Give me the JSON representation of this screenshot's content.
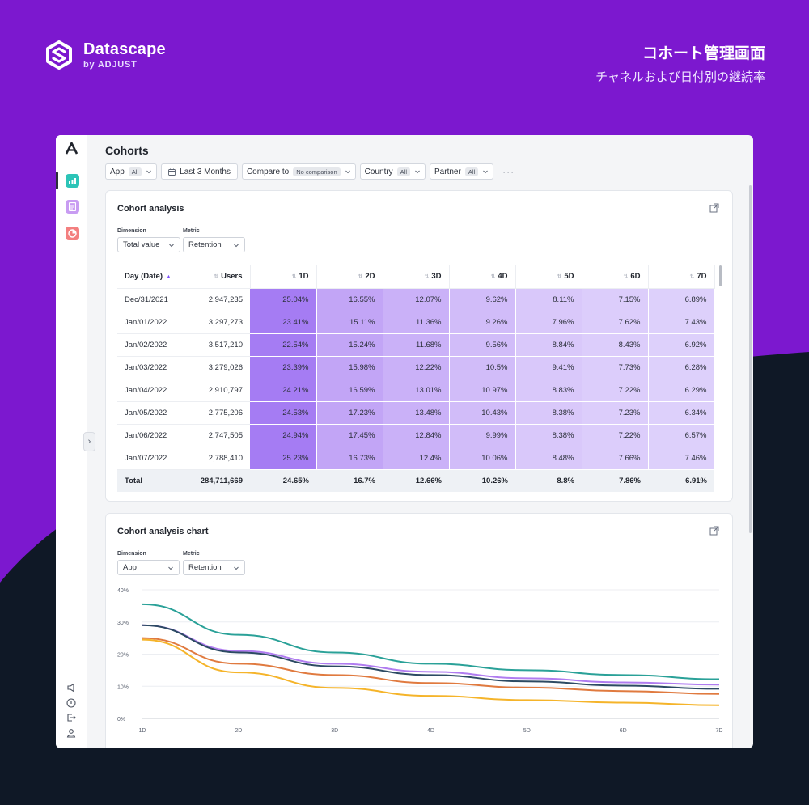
{
  "brand": {
    "name": "Datascape",
    "by": "by ADJUST"
  },
  "headline": {
    "title": "コホート管理画面",
    "subtitle": "チャネルおよび日付別の継続率"
  },
  "page": {
    "title": "Cohorts"
  },
  "filters": {
    "app": {
      "label": "App",
      "pill": "All"
    },
    "date": {
      "label": "Last 3 Months"
    },
    "compare": {
      "label": "Compare to",
      "pill": "No comparison"
    },
    "country": {
      "label": "Country",
      "pill": "All"
    },
    "partner": {
      "label": "Partner",
      "pill": "All"
    },
    "more": "···"
  },
  "cohort_table": {
    "title": "Cohort analysis",
    "dimension_label": "Dimension",
    "dimension_value": "Total value",
    "metric_label": "Metric",
    "metric_value": "Retention",
    "columns": [
      "Day (Date)",
      "Users",
      "1D",
      "2D",
      "3D",
      "4D",
      "5D",
      "6D",
      "7D"
    ],
    "rows": [
      [
        "Dec/31/2021",
        "2,947,235",
        "25.04%",
        "16.55%",
        "12.07%",
        "9.62%",
        "8.11%",
        "7.15%",
        "6.89%"
      ],
      [
        "Jan/01/2022",
        "3,297,273",
        "23.41%",
        "15.11%",
        "11.36%",
        "9.26%",
        "7.96%",
        "7.62%",
        "7.43%"
      ],
      [
        "Jan/02/2022",
        "3,517,210",
        "22.54%",
        "15.24%",
        "11.68%",
        "9.56%",
        "8.84%",
        "8.43%",
        "6.92%"
      ],
      [
        "Jan/03/2022",
        "3,279,026",
        "23.39%",
        "15.98%",
        "12.22%",
        "10.5%",
        "9.41%",
        "7.73%",
        "6.28%"
      ],
      [
        "Jan/04/2022",
        "2,910,797",
        "24.21%",
        "16.59%",
        "13.01%",
        "10.97%",
        "8.83%",
        "7.22%",
        "6.29%"
      ],
      [
        "Jan/05/2022",
        "2,775,206",
        "24.53%",
        "17.23%",
        "13.48%",
        "10.43%",
        "8.38%",
        "7.23%",
        "6.34%"
      ],
      [
        "Jan/06/2022",
        "2,747,505",
        "24.94%",
        "17.45%",
        "12.84%",
        "9.99%",
        "8.38%",
        "7.22%",
        "6.57%"
      ],
      [
        "Jan/07/2022",
        "2,788,410",
        "25.23%",
        "16.73%",
        "12.4%",
        "10.06%",
        "8.48%",
        "7.66%",
        "7.46%"
      ]
    ],
    "total": [
      "Total",
      "284,711,669",
      "24.65%",
      "16.7%",
      "12.66%",
      "10.26%",
      "8.8%",
      "7.86%",
      "6.91%"
    ],
    "heat_colors": {
      "1D": "#a57cf3",
      "2D": "#c2a5f6",
      "3D": "#cab1f8",
      "4D": "#d1bcf9",
      "5D": "#d9c8fa",
      "6D": "#dccdfb",
      "7D": "#ddd0fb"
    }
  },
  "cohort_chart": {
    "title": "Cohort analysis chart",
    "dimension_label": "Dimension",
    "dimension_value": "App",
    "metric_label": "Metric",
    "metric_value": "Retention"
  },
  "chart_data": {
    "type": "line",
    "x": [
      "1D",
      "2D",
      "3D",
      "4D",
      "5D",
      "6D",
      "7D"
    ],
    "ylim": [
      0,
      40
    ],
    "yticks": [
      "0%",
      "10%",
      "20%",
      "30%",
      "40%"
    ],
    "grid": true,
    "series": [
      {
        "color": "#2aa198",
        "values": [
          35.5,
          26,
          20.5,
          17,
          15,
          13.5,
          12.2
        ]
      },
      {
        "color": "#b07cf0",
        "values": [
          29,
          21,
          17,
          14.5,
          12.5,
          11.2,
          10.5
        ]
      },
      {
        "color": "#2c4a63",
        "values": [
          29,
          20.5,
          16.2,
          13.5,
          11.5,
          10.2,
          9.2
        ]
      },
      {
        "color": "#e07a3f",
        "values": [
          25,
          17,
          13.5,
          11,
          9.6,
          8.5,
          7.6
        ]
      },
      {
        "color": "#f5b42a",
        "values": [
          24.5,
          14.3,
          9.5,
          7,
          5.7,
          4.9,
          4.1
        ]
      }
    ]
  }
}
